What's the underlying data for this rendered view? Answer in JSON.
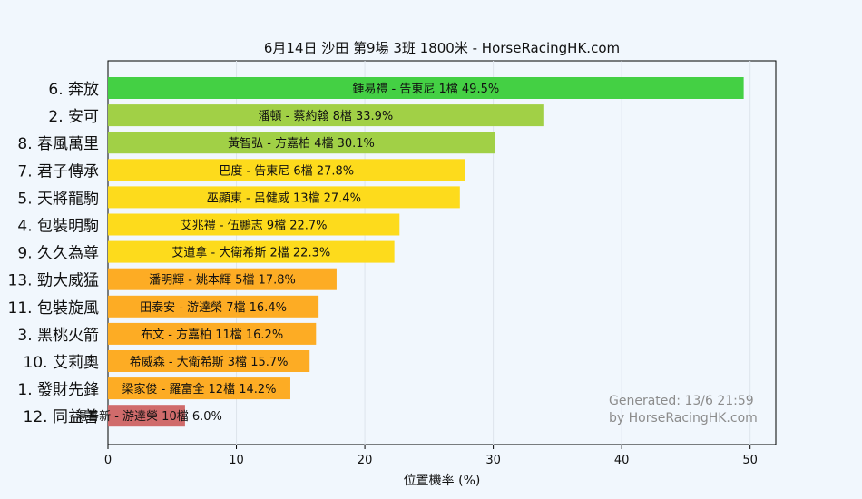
{
  "chart_data": {
    "type": "bar",
    "orientation": "horizontal",
    "title": "6月14日  沙田  第9場  3班  1800米 - HorseRacingHK.com",
    "xlabel": "位置機率 (%)",
    "ylabel": "",
    "xlim": [
      0,
      52
    ],
    "x_ticks": [
      0,
      10,
      20,
      30,
      40,
      50
    ],
    "grid": "vertical",
    "categories": [
      "6. 奔放",
      "2. 安可",
      "8. 春風萬里",
      "7. 君子傳承",
      "5. 天將龍駒",
      "4. 包裝明駒",
      "9. 久久為尊",
      "13. 勁大威猛",
      "11. 包裝旋風",
      "3. 黑桃火箭",
      "10. 艾莉奧",
      "1. 發財先鋒",
      "12. 同益善"
    ],
    "values": [
      49.5,
      33.9,
      30.1,
      27.8,
      27.4,
      22.7,
      22.3,
      17.8,
      16.4,
      16.2,
      15.7,
      14.2,
      6.0
    ],
    "data_labels": [
      "鍾易禮 - 告東尼 1檔  49.5%",
      "潘頓 - 蔡約翰 8檔  33.9%",
      "黃智弘 - 方嘉柏 4檔  30.1%",
      "巴度 - 告東尼 6檔  27.8%",
      "巫顯東 - 呂健威 13檔  27.4%",
      "艾兆禮 - 伍鵬志 9檔  22.7%",
      "艾道拿 - 大衛希斯 2檔  22.3%",
      "潘明輝 - 姚本輝 5檔  17.8%",
      "田泰安 - 游達榮 7檔  16.4%",
      "布文 - 方嘉柏 11檔  16.2%",
      "希威森 - 大衛希斯 3檔  15.7%",
      "梁家俊 - 羅富全 12檔  14.2%",
      "湯普新 - 游達榮 10檔  6.0%"
    ],
    "colors": [
      "#44d044",
      "#a1d046",
      "#a1d046",
      "#fddb1c",
      "#fddb1c",
      "#fddb1c",
      "#fddb1c",
      "#fdac24",
      "#fdac24",
      "#fdac24",
      "#fdac24",
      "#fdac24",
      "#d06b6b"
    ],
    "watermark": [
      "Generated: 13/6 21:59",
      "by HorseRacingHK.com"
    ]
  }
}
